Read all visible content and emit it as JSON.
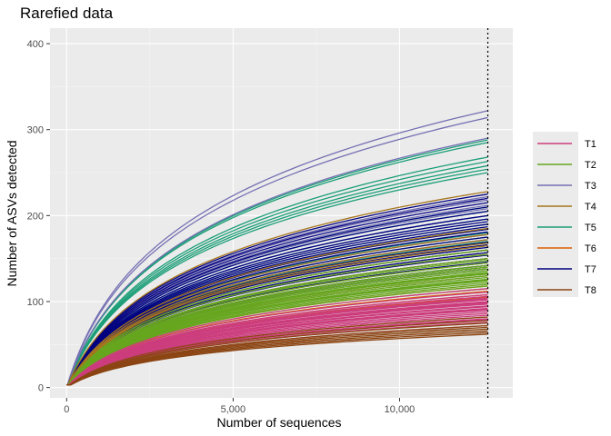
{
  "chart_data": {
    "type": "line",
    "title": "Rarefied data",
    "xlabel": "Number of sequences",
    "ylabel": "Number of ASVs detected",
    "xlim": [
      -500,
      13400
    ],
    "ylim": [
      -12,
      418
    ],
    "x_ticks": [
      0,
      5000,
      10000
    ],
    "x_tick_labels": [
      "0",
      "5,000",
      "10,000"
    ],
    "y_ticks": [
      0,
      100,
      200,
      300,
      400
    ],
    "y_tick_labels": [
      "0",
      "100",
      "200",
      "300",
      "400"
    ],
    "grid": true,
    "vline": 12650,
    "legend_position": "right",
    "x_end": 12650,
    "series": [
      {
        "name": "T1",
        "color": "#CC3D7D",
        "finals": [
          72,
          76,
          79,
          82,
          84,
          86,
          88,
          90,
          92,
          94,
          95,
          97,
          99,
          100,
          102,
          104,
          106,
          108,
          111,
          115,
          80,
          91,
          98,
          103
        ]
      },
      {
        "name": "T2",
        "color": "#66A61E",
        "finals": [
          115,
          118,
          120,
          122,
          124,
          126,
          128,
          130,
          132,
          134,
          136,
          138,
          140,
          142,
          145,
          148,
          150,
          155,
          160,
          125,
          133
        ]
      },
      {
        "name": "T3",
        "color": "#7570B3",
        "finals": [
          322,
          314,
          290,
          222,
          218,
          212,
          208,
          200
        ]
      },
      {
        "name": "T4",
        "color": "#A6761D",
        "finals": [
          228,
          185,
          178,
          172,
          168,
          165,
          160,
          155,
          150,
          145,
          140
        ]
      },
      {
        "name": "T5",
        "color": "#1B9E77",
        "finals": [
          288,
          285,
          268,
          263,
          258,
          254,
          250,
          210,
          205,
          200,
          196,
          190,
          185,
          180,
          175,
          170,
          165,
          160,
          150,
          140,
          130
        ]
      },
      {
        "name": "T6",
        "color": "#D95F02",
        "finals": [
          130,
          125,
          118,
          112,
          108,
          105
        ]
      },
      {
        "name": "T7",
        "color": "#000080",
        "finals": [
          225,
          220,
          215,
          210,
          205,
          200,
          196,
          193,
          190,
          187,
          184,
          181,
          178,
          175,
          172,
          169,
          166,
          163,
          160,
          157,
          154,
          150,
          146,
          142,
          138
        ]
      },
      {
        "name": "T8",
        "color": "#8B4513",
        "finals": [
          82,
          78,
          75,
          72,
          70,
          68,
          66,
          64,
          62
        ]
      }
    ]
  }
}
